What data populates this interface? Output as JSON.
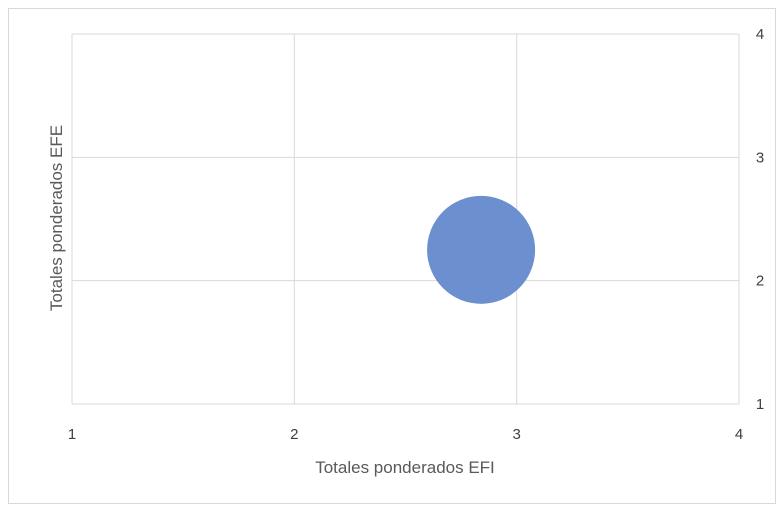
{
  "chart_data": {
    "type": "bubble",
    "xlabel": "Totales ponderados EFI",
    "ylabel": "Totales ponderados EFE",
    "xlim": [
      1,
      4
    ],
    "ylim": [
      1,
      4
    ],
    "x_ticks": [
      "1",
      "2",
      "3",
      "4"
    ],
    "y_ticks": [
      "1",
      "2",
      "3",
      "4"
    ],
    "y_axis_side": "right",
    "grid": true,
    "legend": "none",
    "series": [
      {
        "points": [
          {
            "x": 2.84,
            "y": 2.25
          }
        ],
        "color": "#6b8fcf"
      }
    ]
  }
}
